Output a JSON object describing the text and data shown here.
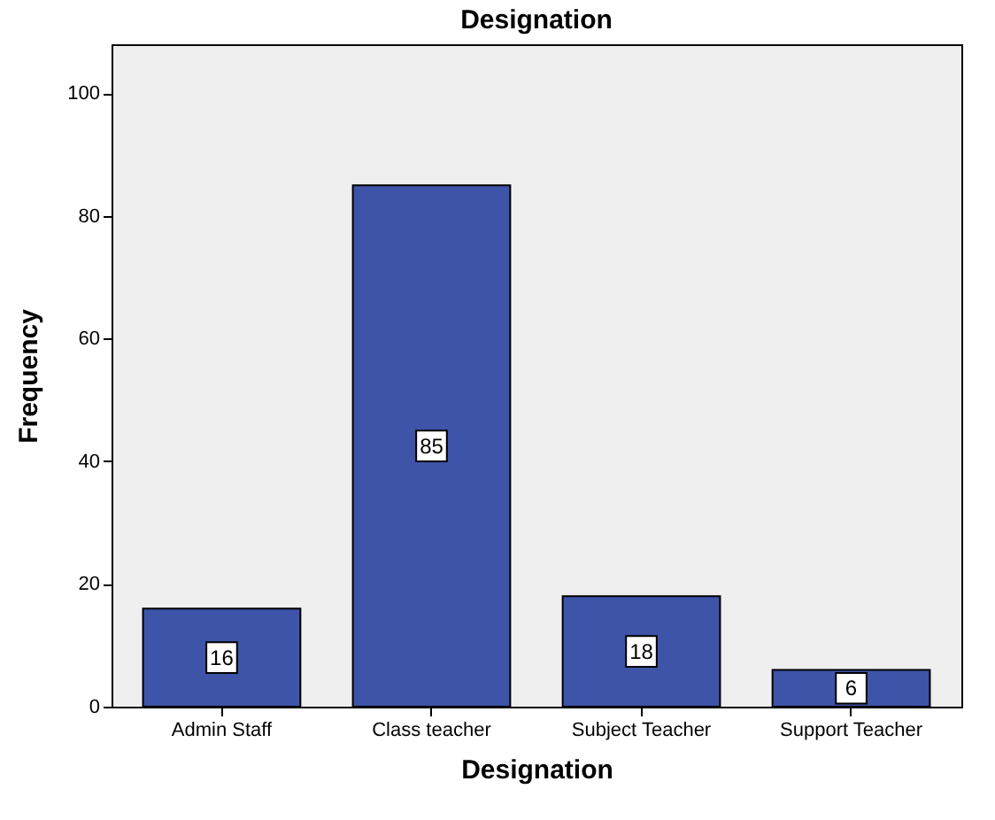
{
  "chart_data": {
    "type": "bar",
    "title": "Designation",
    "xlabel": "Designation",
    "ylabel": "Frequency",
    "categories": [
      "Admin Staff",
      "Class teacher",
      "Subject Teacher",
      "Support Teacher"
    ],
    "values": [
      16,
      85,
      18,
      6
    ],
    "color": "#3e54a8",
    "ylim": [
      0,
      108
    ],
    "yticks": [
      0,
      20,
      40,
      60,
      80,
      100
    ],
    "grid": false,
    "data_labels": true
  }
}
